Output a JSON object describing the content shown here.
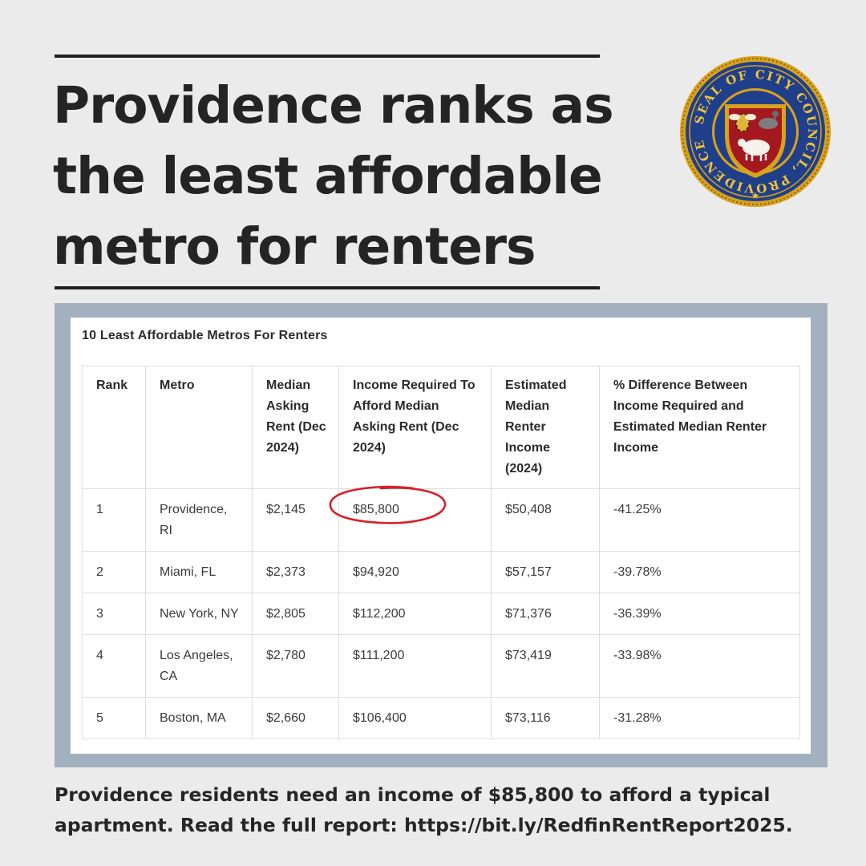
{
  "headline": {
    "line1": "Providence ranks as",
    "line2": "the least affordable",
    "line3": "metro for renters"
  },
  "seal": {
    "icon": "city-council-seal-icon",
    "ring_text": "SEAL OF CITY COUNCIL, PROVIDENCE R.I.",
    "colors": {
      "ring": "#1f3f8a",
      "gold": "#d9a21c",
      "shield": "#a3191f"
    }
  },
  "table": {
    "title": "10 Least Affordable Metros For Renters",
    "columns": [
      "Rank",
      "Metro",
      "Median Asking Rent (Dec 2024)",
      "Income Required To Afford Median Asking Rent (Dec 2024)",
      "Estimated Median Renter Income (2024)",
      "% Difference Between Income Required and Estimated Median Renter Income"
    ],
    "rows": [
      [
        "1",
        "Providence, RI",
        "$2,145",
        "$85,800",
        "$50,408",
        "-41.25%"
      ],
      [
        "2",
        "Miami, FL",
        "$2,373",
        "$94,920",
        "$57,157",
        "-39.78%"
      ],
      [
        "3",
        "New York, NY",
        "$2,805",
        "$112,200",
        "$71,376",
        "-36.39%"
      ],
      [
        "4",
        "Los Angeles, CA",
        "$2,780",
        "$111,200",
        "$73,419",
        "-33.98%"
      ],
      [
        "5",
        "Boston, MA",
        "$2,660",
        "$106,400",
        "$73,116",
        "-31.28%"
      ]
    ],
    "highlight_color": "#d81f26"
  },
  "caption": "Providence residents need an income of $85,800 to afford a typical apartment. Read the full report: https://bit.ly/RedfinRentReport2025."
}
